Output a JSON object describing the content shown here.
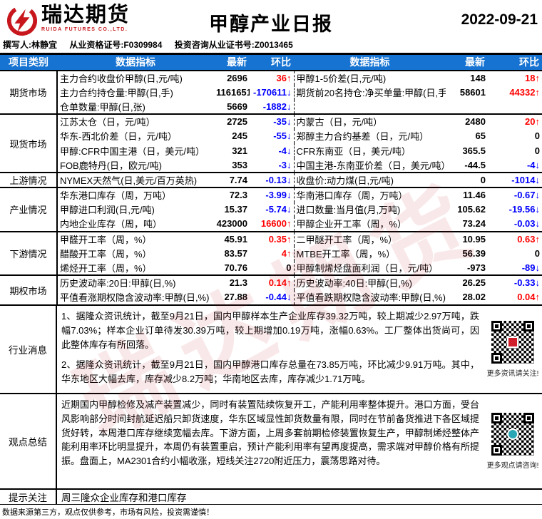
{
  "colors": {
    "accent_blue": "#1673d2",
    "up_red": "#ff0000",
    "down_blue": "#0000ff",
    "brand_red": "#c8161d"
  },
  "header": {
    "brand_name": "瑞达期货",
    "brand_sub": "RUIDA FUTURES CO.,LTD.",
    "title": "甲醇产业日报",
    "date": "2022-09-21",
    "author": "撰写人:林静宜",
    "qualification": "从业资格证号:F0309984",
    "advisory": "投资咨询从业证书号:Z0013465"
  },
  "watermark": "瑞达期货",
  "table": {
    "headers": [
      "项目类别",
      "数据指标",
      "最新",
      "环比",
      "数据指标",
      "最新",
      "环比"
    ],
    "sections": [
      {
        "category": "期货市场",
        "rows": [
          {
            "l_label": "主力合约收盘价甲醇(日,元/吨)",
            "l_value": "2696",
            "l_change": "36↑",
            "l_dir": "up",
            "r_label": "甲醇1-5价差(日,元/吨)",
            "r_value": "148",
            "r_change": "18↑",
            "r_dir": "up"
          },
          {
            "l_label": "主力合约持仓量:甲醇(日,手)",
            "l_value": "1161651",
            "l_change": "-170611↓",
            "l_dir": "down",
            "r_label": "期货前20名持仓:净买单量:甲醇(日,手)",
            "r_value": "58601",
            "r_change": "44332↑",
            "r_dir": "up"
          },
          {
            "l_label": "仓单数量:甲醇(日,张)",
            "l_value": "5669",
            "l_change": "-1882↓",
            "l_dir": "down",
            "r_label": "",
            "r_value": "",
            "r_change": "",
            "r_dir": "flat"
          }
        ]
      },
      {
        "category": "现货市场",
        "rows": [
          {
            "l_label": "江苏太仓（日，元/吨）",
            "l_value": "2725",
            "l_change": "-35↓",
            "l_dir": "down",
            "r_label": "内蒙古（日，元/吨）",
            "r_value": "2480",
            "r_change": "20↑",
            "r_dir": "up"
          },
          {
            "l_label": "华东-西北价差（日，元/吨）",
            "l_value": "245",
            "l_change": "-55↓",
            "l_dir": "down",
            "r_label": "郑醇主力合约基差（日，元/吨）",
            "r_value": "65",
            "r_change": "0",
            "r_dir": "flat"
          },
          {
            "l_label": "甲醇:CFR中国主港（日，美元/吨）",
            "l_value": "321",
            "l_change": "-4↓",
            "l_dir": "down",
            "r_label": "CFR东南亚（日，美元/吨）",
            "r_value": "365.5",
            "r_change": "0",
            "r_dir": "flat"
          },
          {
            "l_label": "FOB鹿特丹(日，欧元/吨)",
            "l_value": "353",
            "l_change": "-3↓",
            "l_dir": "down",
            "r_label": "中国主港-东南亚价差（日，美元/吨）",
            "r_value": "-44.5",
            "r_change": "-4↓",
            "r_dir": "down"
          }
        ]
      },
      {
        "category": "上游情况",
        "rows": [
          {
            "l_label": "NYMEX天然气(日,美元/百万英热)",
            "l_value": "7.74",
            "l_change": "-0.13↓",
            "l_dir": "down",
            "r_label": "收盘价:动力煤(日,元/吨)",
            "r_value": "0",
            "r_change": "-1014↓",
            "r_dir": "down"
          }
        ]
      },
      {
        "category": "产业情况",
        "rows": [
          {
            "l_label": "华东港口库存（周，万吨）",
            "l_value": "72.3",
            "l_change": "-3.99↓",
            "l_dir": "down",
            "r_label": "华南港口库存（周，万吨）",
            "r_value": "11.46",
            "r_change": "-0.67↓",
            "r_dir": "down"
          },
          {
            "l_label": "甲醇进口利润(日,元/吨)",
            "l_value": "15.37",
            "l_change": "-5.74↓",
            "l_dir": "down",
            "r_label": "进口数量:当月值(月,万吨)",
            "r_value": "105.62",
            "r_change": "-19.56↓",
            "r_dir": "down"
          },
          {
            "l_label": "内地企业库存（周，吨）",
            "l_value": "423000",
            "l_change": "16600↑",
            "l_dir": "up",
            "r_label": "甲醇企业开工率（周，%）",
            "r_value": "73.24",
            "r_change": "-0.03↓",
            "r_dir": "down"
          }
        ]
      },
      {
        "category": "下游情况",
        "rows": [
          {
            "l_label": "甲醛开工率（周，%）",
            "l_value": "45.91",
            "l_change": "0.35↑",
            "l_dir": "up",
            "r_label": "二甲醚开工率（周，%）",
            "r_value": "10.95",
            "r_change": "0.63↑",
            "r_dir": "up"
          },
          {
            "l_label": "醋酸开工率（周，%）",
            "l_value": "83.57",
            "l_change": "4↑",
            "l_dir": "up",
            "r_label": "MTBE开工率（周，%）",
            "r_value": "56.39",
            "r_change": "0",
            "r_dir": "flat"
          },
          {
            "l_label": "烯烃开工率（周，%）",
            "l_value": "70.76",
            "l_change": "0",
            "l_dir": "flat",
            "r_label": "甲醇制烯烃盘面利润（日，元/吨）",
            "r_value": "-973",
            "r_change": "-89↓",
            "r_dir": "down"
          }
        ]
      },
      {
        "category": "期权市场",
        "rows": [
          {
            "l_label": "历史波动率:20日:甲醇(日,%)",
            "l_value": "21.3",
            "l_change": "0.14↑",
            "l_dir": "up",
            "r_label": "历史波动率:40日:甲醇(日,%)",
            "r_value": "26.25",
            "r_change": "-0.33↓",
            "r_dir": "down"
          },
          {
            "l_label": "平值看涨期权隐含波动率:甲醇(日,%)",
            "l_value": "27.88",
            "l_change": "-0.44↓",
            "l_dir": "down",
            "r_label": "平值看跌期权隐含波动率:甲醇(日,%)",
            "r_value": "28.02",
            "r_change": "0.04↑",
            "r_dir": "up"
          }
        ]
      }
    ]
  },
  "news": {
    "category": "行业消息",
    "paragraphs": [
      "1、据隆众资讯统计，截至9月21日，国内甲醇样本生产企业库存39.32万吨，较上期减少2.97万吨，跌幅7.03%；样本企业订单待发30.39万吨，较上期增加0.19万吨，涨幅0.63%。工厂整体出货尚可，因此整体库存有所回落。",
      "2、据隆众资讯统计，截至9月21日，国内甲醇港口库存总量在73.85万吨，环比减少9.91万吨。其中，华东地区大幅去库，库存减少8.2万吨；华南地区去库，库存减少1.71万吨。"
    ],
    "qr_caption": "更多资讯请关注!"
  },
  "viewpoint": {
    "category": "观点总结",
    "paragraph": "近期国内甲醇检修及减产装置减少，同时有装置陆续恢复开工，产能利用率整体提升。港口方面，受台风影响部分时间封航延迟船只卸货速度，华东区域显性卸货数量有限，同时在节前备货推进下各区域提货好转，本周港口库存继续宽幅去库。下游方面，上周多套前期检修装置恢复生产，甲醇制烯烃整体产能利用率环比明显提升，本周仍有装置重启，预计产能利用率有望再度提高，需求端对甲醇价格有所提振。盘面上，MA2301合约小幅收涨，短线关注2720附近压力，震荡思路对待。",
    "qr_caption": "更多观点请咨询!"
  },
  "tip": {
    "category": "提示关注",
    "text": "周三隆众企业库存和港口库存"
  },
  "disclaimer": "数据来源第三方，观点仅供参考，市场有风险，投资需谨慎！"
}
